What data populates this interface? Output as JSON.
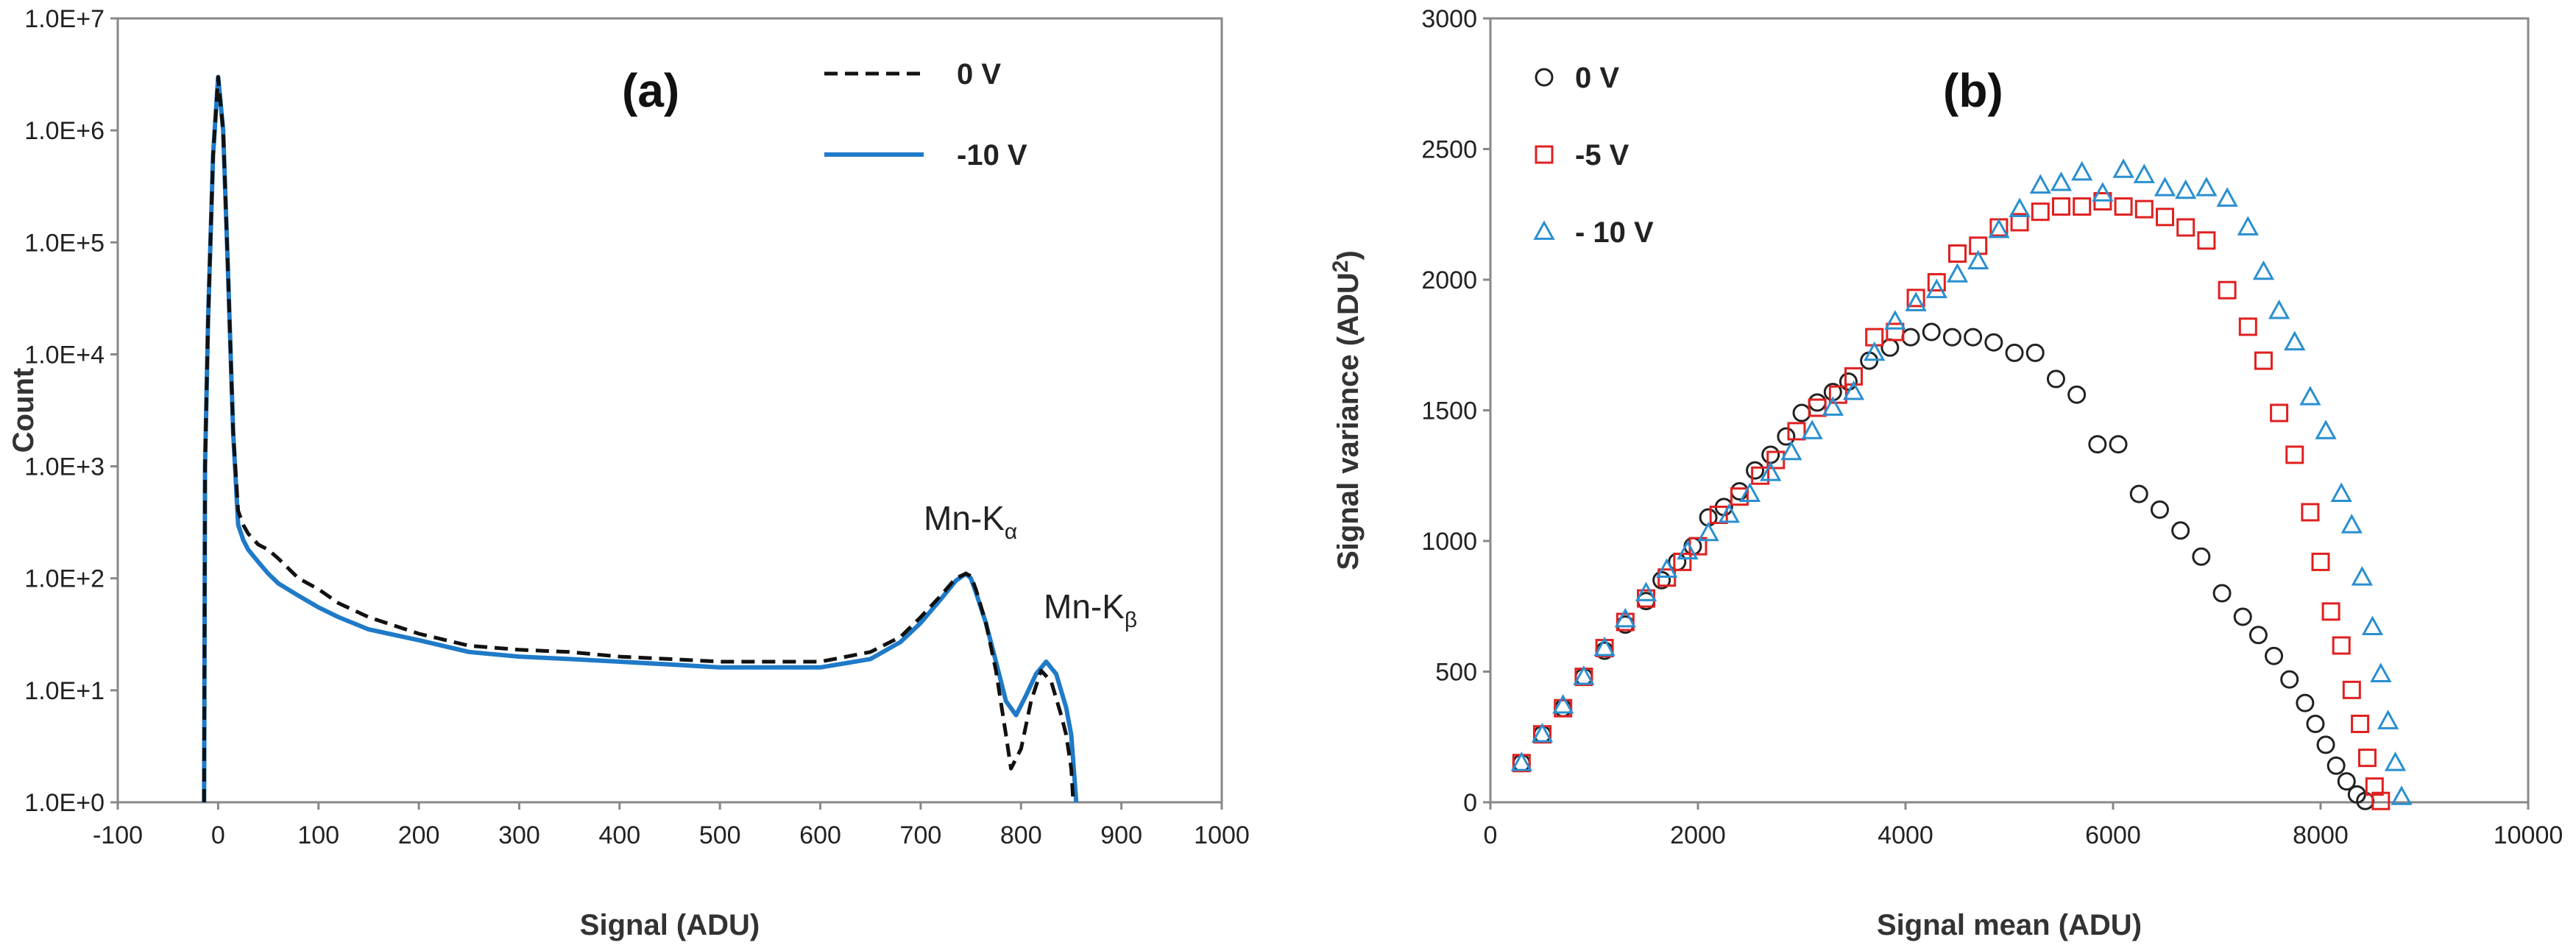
{
  "chart_data": [
    {
      "type": "line",
      "panel_label": "(a)",
      "xlabel": "Signal (ADU)",
      "ylabel": "Count",
      "xlim": [
        -100,
        1000
      ],
      "ylim": [
        1,
        10000000
      ],
      "yscale": "log",
      "xticks": [
        "-100",
        "0",
        "100",
        "200",
        "300",
        "400",
        "500",
        "600",
        "700",
        "800",
        "900",
        "1000"
      ],
      "yticks": [
        "1.0E+0",
        "1.0E+1",
        "1.0E+2",
        "1.0E+3",
        "1.0E+4",
        "1.0E+5",
        "1.0E+6",
        "1.0E+7"
      ],
      "legend_position": "top-right",
      "annotations": [
        {
          "text": "Mn-K",
          "sub": "α",
          "x": 750,
          "y": 200
        },
        {
          "text": "Mn-K",
          "sub": "β",
          "x": 860,
          "y": 60
        }
      ],
      "series": [
        {
          "name": "0 V",
          "color": "#111111",
          "style": "dashed",
          "x": [
            -14,
            -13,
            -10,
            -5,
            0,
            5,
            10,
            15,
            20,
            25,
            30,
            40,
            50,
            60,
            80,
            100,
            120,
            150,
            200,
            250,
            300,
            350,
            400,
            450,
            500,
            550,
            600,
            650,
            680,
            700,
            720,
            735,
            745,
            750,
            755,
            765,
            775,
            785,
            790,
            800,
            810,
            820,
            830,
            840,
            845,
            850,
            852
          ],
          "y": [
            1,
            1000,
            20000,
            600000,
            3000000,
            1000000,
            50000,
            2000,
            400,
            300,
            250,
            200,
            180,
            150,
            100,
            80,
            60,
            45,
            32,
            25,
            23,
            22,
            20,
            19,
            18,
            18,
            18,
            22,
            30,
            45,
            70,
            100,
            110,
            105,
            80,
            40,
            15,
            4,
            2,
            3,
            8,
            15,
            12,
            6,
            4,
            2,
            1
          ]
        },
        {
          "name": "-10 V",
          "color": "#1f7ac8",
          "style": "solid",
          "x": [
            -14,
            -13,
            -10,
            -5,
            0,
            5,
            10,
            15,
            20,
            25,
            30,
            40,
            50,
            60,
            80,
            100,
            120,
            150,
            200,
            250,
            300,
            350,
            400,
            450,
            500,
            550,
            600,
            650,
            680,
            700,
            720,
            735,
            745,
            750,
            755,
            765,
            775,
            785,
            795,
            805,
            815,
            825,
            835,
            845,
            850,
            855
          ],
          "y": [
            1,
            1000,
            20000,
            600000,
            3000000,
            1000000,
            50000,
            2000,
            300,
            220,
            180,
            140,
            110,
            90,
            70,
            55,
            45,
            35,
            28,
            22,
            20,
            19,
            18,
            17,
            16,
            16,
            16,
            19,
            27,
            40,
            65,
            95,
            110,
            100,
            75,
            40,
            18,
            8,
            6,
            9,
            14,
            18,
            14,
            7,
            4,
            1
          ]
        }
      ]
    },
    {
      "type": "scatter",
      "panel_label": "(b)",
      "xlabel": "Signal mean (ADU)",
      "ylabel": "Signal variance (ADU",
      "ylabel_sup": "2",
      "ylabel_close": ")",
      "xlim": [
        0,
        10000
      ],
      "ylim": [
        0,
        3000
      ],
      "xticks": [
        "0",
        "2000",
        "4000",
        "6000",
        "8000",
        "10000"
      ],
      "yticks": [
        "0",
        "500",
        "1000",
        "1500",
        "2000",
        "2500",
        "3000"
      ],
      "legend_position": "top-left",
      "series": [
        {
          "name": "0 V",
          "marker": "circle",
          "color": "#222222",
          "x": [
            300,
            500,
            700,
            900,
            1100,
            1300,
            1500,
            1650,
            1800,
            1950,
            2100,
            2250,
            2400,
            2550,
            2700,
            2850,
            3000,
            3150,
            3300,
            3450,
            3650,
            3850,
            4050,
            4250,
            4450,
            4650,
            4850,
            5050,
            5250,
            5450,
            5650,
            5850,
            6050,
            6250,
            6450,
            6650,
            6850,
            7050,
            7250,
            7400,
            7550,
            7700,
            7850,
            7950,
            8050,
            8150,
            8250,
            8350,
            8430
          ],
          "y": [
            150,
            260,
            360,
            480,
            580,
            680,
            770,
            850,
            920,
            980,
            1090,
            1130,
            1190,
            1270,
            1330,
            1400,
            1490,
            1530,
            1570,
            1610,
            1690,
            1740,
            1780,
            1800,
            1780,
            1780,
            1760,
            1720,
            1720,
            1620,
            1560,
            1370,
            1370,
            1180,
            1120,
            1040,
            940,
            800,
            710,
            640,
            560,
            470,
            380,
            300,
            220,
            140,
            80,
            30,
            5
          ]
        },
        {
          "name": "-5 V",
          "marker": "square",
          "color": "#e02020",
          "x": [
            300,
            500,
            700,
            900,
            1100,
            1300,
            1500,
            1700,
            1850,
            2000,
            2200,
            2400,
            2600,
            2750,
            2950,
            3150,
            3350,
            3500,
            3700,
            3900,
            4100,
            4300,
            4500,
            4700,
            4900,
            5100,
            5300,
            5500,
            5700,
            5900,
            6100,
            6300,
            6500,
            6700,
            6900,
            7100,
            7300,
            7450,
            7600,
            7750,
            7900,
            8000,
            8100,
            8200,
            8300,
            8380,
            8450,
            8520,
            8580
          ],
          "y": [
            150,
            260,
            360,
            480,
            590,
            690,
            780,
            860,
            920,
            980,
            1100,
            1170,
            1250,
            1310,
            1420,
            1510,
            1560,
            1630,
            1780,
            1800,
            1930,
            1990,
            2100,
            2130,
            2200,
            2220,
            2260,
            2280,
            2280,
            2300,
            2280,
            2270,
            2240,
            2200,
            2150,
            1960,
            1820,
            1690,
            1490,
            1330,
            1110,
            920,
            730,
            600,
            430,
            300,
            170,
            60,
            5
          ]
        },
        {
          "name": "- 10 V",
          "marker": "triangle",
          "color": "#2a8fd0",
          "x": [
            300,
            500,
            700,
            900,
            1100,
            1300,
            1500,
            1700,
            1900,
            2100,
            2300,
            2500,
            2700,
            2900,
            3100,
            3300,
            3500,
            3700,
            3900,
            4100,
            4300,
            4500,
            4700,
            4900,
            5100,
            5300,
            5500,
            5700,
            5900,
            6100,
            6300,
            6500,
            6700,
            6900,
            7100,
            7300,
            7450,
            7600,
            7750,
            7900,
            8050,
            8200,
            8300,
            8400,
            8500,
            8580,
            8650,
            8720,
            8780
          ],
          "y": [
            150,
            260,
            370,
            480,
            590,
            700,
            800,
            890,
            960,
            1030,
            1100,
            1180,
            1260,
            1340,
            1420,
            1510,
            1570,
            1720,
            1840,
            1910,
            1960,
            2020,
            2070,
            2190,
            2270,
            2360,
            2370,
            2410,
            2330,
            2420,
            2400,
            2350,
            2340,
            2350,
            2310,
            2200,
            2030,
            1880,
            1760,
            1550,
            1420,
            1180,
            1060,
            860,
            670,
            490,
            310,
            150,
            20
          ]
        }
      ]
    }
  ]
}
